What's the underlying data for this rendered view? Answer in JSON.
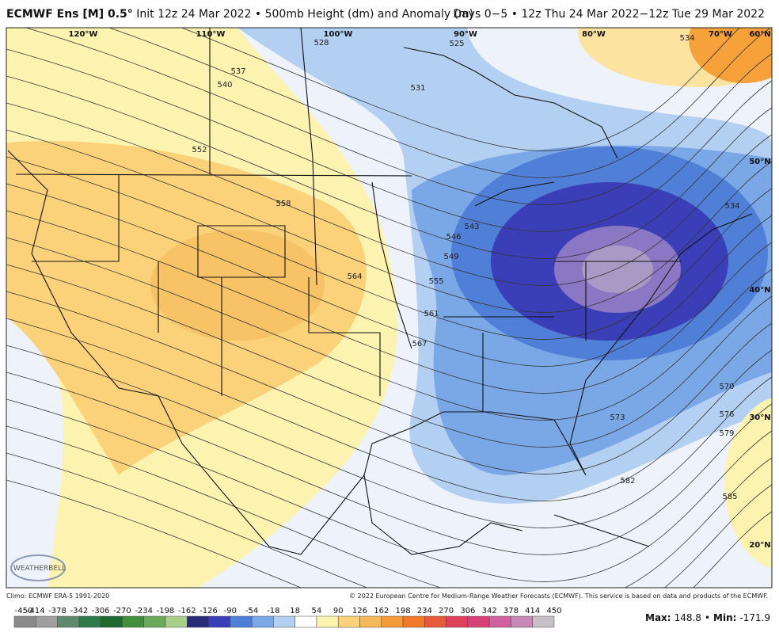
{
  "header": {
    "model": "ECMWF Ens [M] 0.5°",
    "init": "Init 12z 24 Mar 2022 • 500mb Height (dm) and Anomaly (m)",
    "valid": "Days 0−5 • 12z Thu 24 Mar 2022−12z Tue 29 Mar 2022"
  },
  "map": {
    "lon_labels": [
      "120°W",
      "110°W",
      "100°W",
      "90°W",
      "80°W",
      "70°W",
      "60°N"
    ],
    "lat_labels": [
      "60°N",
      "50°N",
      "40°N",
      "30°N",
      "20°N"
    ],
    "contour_labels": [
      528,
      525,
      531,
      537,
      540,
      552,
      558,
      564,
      546,
      543,
      549,
      555,
      561,
      567,
      534,
      534,
      570,
      573,
      576,
      579,
      582,
      585
    ],
    "logo": "WEATHERBELL"
  },
  "footer": {
    "climo": "Climo: ECMWF ERA-5 1991-2020",
    "copyright": "© 2022 European Centre for Medium-Range Weather Forecasts (ECMWF). This service is based on data and products of the ECMWF."
  },
  "colorbar": {
    "ticks": [
      -450,
      -414,
      -378,
      -342,
      -306,
      -270,
      -234,
      -198,
      -162,
      -126,
      -90,
      -54,
      -18,
      18,
      54,
      90,
      126,
      162,
      198,
      234,
      270,
      306,
      342,
      378,
      414,
      450
    ],
    "colors": [
      "#8a8a8a",
      "#a0a0a0",
      "#5f8a6e",
      "#2f7a4a",
      "#1f6a30",
      "#3f8f3f",
      "#6aaa5a",
      "#a9cf8a",
      "#2a2a7a",
      "#3a3fb8",
      "#4f7fd6",
      "#7aa7e6",
      "#b3d0f2",
      "#ffffff",
      "#fdf3b0",
      "#fbd27a",
      "#f7b85a",
      "#f59a3a",
      "#f07a2a",
      "#e85a3a",
      "#e0405a",
      "#d8407a",
      "#d060a0",
      "#c888b8",
      "#c8c0c8"
    ]
  },
  "stats": {
    "max_label": "Max:",
    "max": 148.8,
    "separator": "•",
    "min_label": "Min:",
    "min": -171.9
  }
}
